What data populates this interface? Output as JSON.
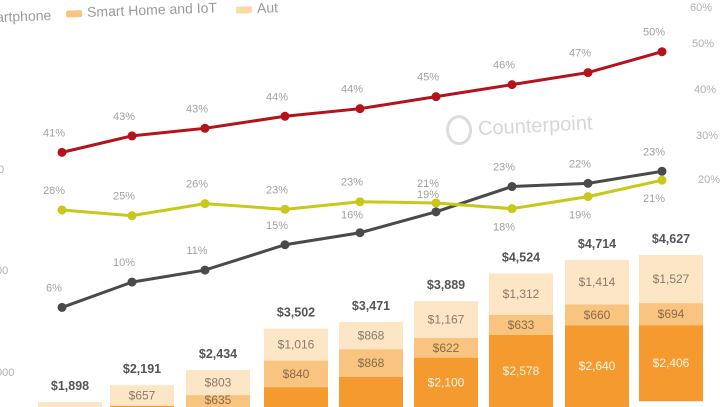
{
  "legend": {
    "items": [
      {
        "label": "artphone",
        "color": "#b5121b"
      },
      {
        "label": "Smart Home and IoT",
        "color": "#f5a13a"
      },
      {
        "label": "Aut",
        "color": "#fde3c0"
      }
    ]
  },
  "watermark": "Counterpoint",
  "left_axis": [
    "0",
    "00",
    "000"
  ],
  "right_axis": [
    "60%",
    "50%",
    "40%",
    "30%",
    "20%"
  ],
  "chart_data": {
    "type": "bar+line",
    "bars": {
      "totals": [
        1898,
        2191,
        2434,
        3502,
        3471,
        3889,
        4524,
        4714,
        4627
      ],
      "total_labels": [
        "$1,898",
        "$2,191",
        "$2,434",
        "$3,502",
        "$3,471",
        "$3,889",
        "$4,524",
        "$4,714",
        "$4,627"
      ],
      "segments": [
        {
          "name": "bottom",
          "color": "#f59a2e",
          "values": [
            null,
            null,
            null,
            1646,
            1735,
            2100,
            2578,
            2640,
            2406
          ],
          "labels": [
            "",
            "",
            "",
            "",
            "",
            "$2,100",
            "$2,578",
            "$2,640",
            "$2,406"
          ]
        },
        {
          "name": "middle",
          "color": "#f9c47f",
          "values": [
            null,
            null,
            635,
            840,
            868,
            622,
            633,
            660,
            694
          ],
          "labels": [
            "",
            "",
            "$635",
            "$840",
            "$868",
            "$622",
            "$633",
            "$660",
            "$694"
          ]
        },
        {
          "name": "top",
          "color": "#fde6c6",
          "values": [
            null,
            657,
            803,
            1016,
            868,
            1167,
            1312,
            1414,
            1527
          ],
          "labels": [
            "",
            "$657",
            "$803",
            "$1,016",
            "$868",
            "$1,167",
            "$1,312",
            "$1,414",
            "$1,527"
          ]
        }
      ]
    },
    "lines": [
      {
        "name": "red",
        "color": "#b5121b",
        "values": [
          41,
          43,
          43,
          44,
          44,
          45,
          46,
          47,
          50
        ],
        "labels": [
          "41%",
          "43%",
          "43%",
          "44%",
          "44%",
          "45%",
          "46%",
          "47%",
          "50%"
        ],
        "label_pos": "above"
      },
      {
        "name": "gray",
        "color": "#4a4a4a",
        "values": [
          6,
          10,
          11,
          15,
          16,
          19,
          23,
          22,
          23
        ],
        "labels": [
          "6%",
          "10%",
          "11%",
          "15%",
          "16%",
          "19%",
          "23%",
          "22%",
          "23%"
        ],
        "label_pos": "above"
      },
      {
        "name": "yellow",
        "color": "#c8c81a",
        "values": [
          28,
          25,
          26,
          23,
          23,
          21,
          18,
          19,
          21
        ],
        "labels": [
          "28%",
          "25%",
          "26%",
          "23%",
          "23%",
          "21%",
          "18%",
          "19%",
          "21%"
        ],
        "label_pos": "mixed"
      }
    ],
    "right_ylim": [
      0,
      60
    ]
  }
}
